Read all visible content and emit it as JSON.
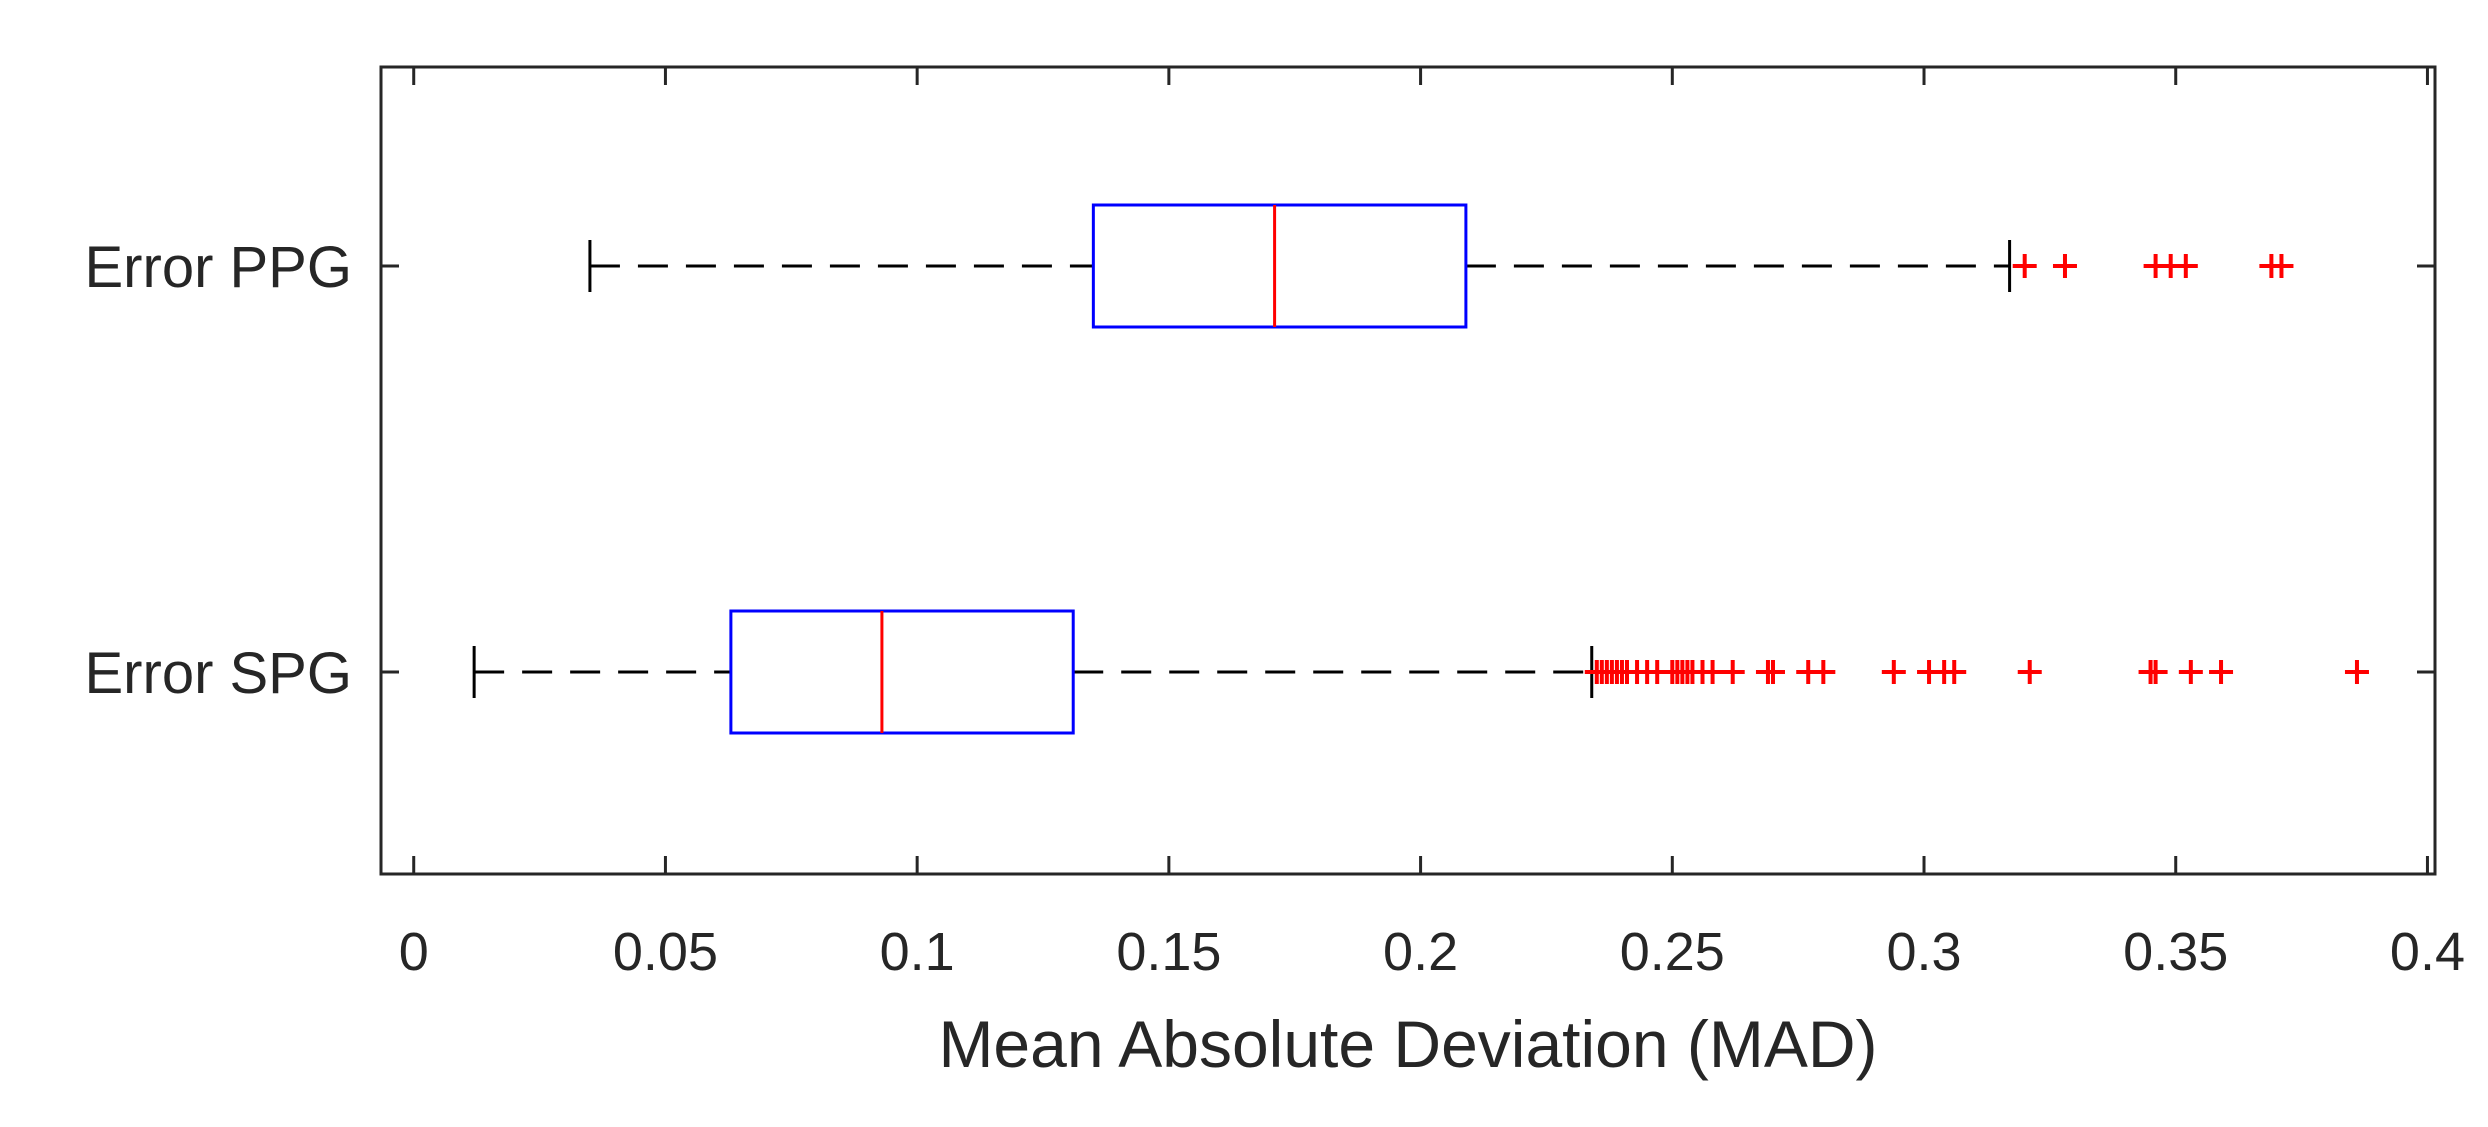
{
  "chart_data": {
    "type": "boxplot",
    "orientation": "horizontal",
    "title": "",
    "xlabel": "Mean Absolute Deviation (MAD)",
    "ylabel": "",
    "xlim": [
      -0.0065,
      0.4015
    ],
    "xticks": [
      0,
      0.05,
      0.1,
      0.15,
      0.2,
      0.25,
      0.3,
      0.35,
      0.4
    ],
    "xtick_labels": [
      "0",
      "0.05",
      "0.1",
      "0.15",
      "0.2",
      "0.25",
      "0.3",
      "0.35",
      "0.4"
    ],
    "categories": [
      "Error PPG",
      "Error SPG"
    ],
    "boxes": [
      {
        "name": "Error PPG",
        "whisker_low": 0.035,
        "q1": 0.135,
        "median": 0.171,
        "q3": 0.209,
        "whisker_high": 0.317,
        "outliers": [
          0.32,
          0.328,
          0.346,
          0.349,
          0.352,
          0.369,
          0.371
        ]
      },
      {
        "name": "Error SPG",
        "whisker_low": 0.012,
        "q1": 0.063,
        "median": 0.093,
        "q3": 0.131,
        "whisker_high": 0.234,
        "outliers": [
          0.235,
          0.236,
          0.237,
          0.238,
          0.239,
          0.24,
          0.241,
          0.243,
          0.245,
          0.247,
          0.25,
          0.251,
          0.252,
          0.253,
          0.254,
          0.256,
          0.258,
          0.262,
          0.269,
          0.27,
          0.277,
          0.28,
          0.294,
          0.301,
          0.304,
          0.306,
          0.321,
          0.345,
          0.346,
          0.353,
          0.359,
          0.386
        ]
      }
    ],
    "colors": {
      "box": "#0000ff",
      "median": "#ff0000",
      "outlier": "#ff0000",
      "whisker": "#000000",
      "axis": "#262626"
    }
  }
}
